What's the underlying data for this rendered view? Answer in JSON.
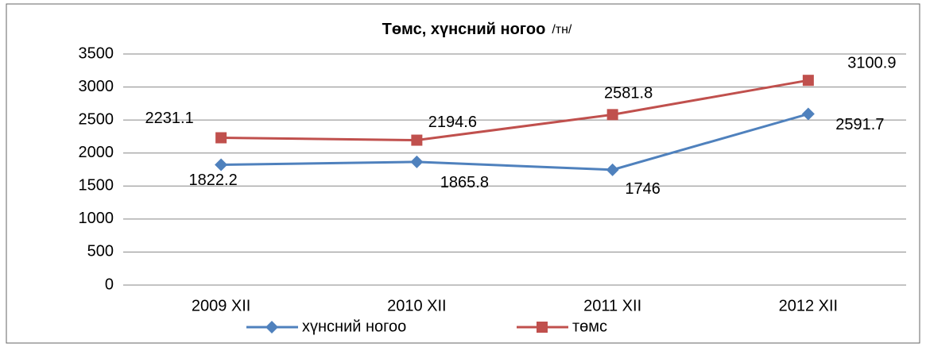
{
  "chart_data": {
    "type": "line",
    "title": "Төмс, хүнсний ногоо",
    "subtitle": "/тн/",
    "categories": [
      "2009 XII",
      "2010 XII",
      "2011 XII",
      "2012 XII"
    ],
    "series": [
      {
        "name": "хүнсний ногоо",
        "color": "#4f81bd",
        "marker": "diamond",
        "values": [
          1822.2,
          1865.8,
          1746,
          2591.7
        ]
      },
      {
        "name": "төмс",
        "color": "#c0504d",
        "marker": "square",
        "values": [
          2231.1,
          2194.6,
          2581.8,
          3100.9
        ]
      }
    ],
    "ylim": [
      0,
      3500
    ],
    "yticks": [
      0,
      500,
      1000,
      1500,
      2000,
      2500,
      3000,
      3500
    ],
    "grid": true,
    "legend": "bottom"
  }
}
